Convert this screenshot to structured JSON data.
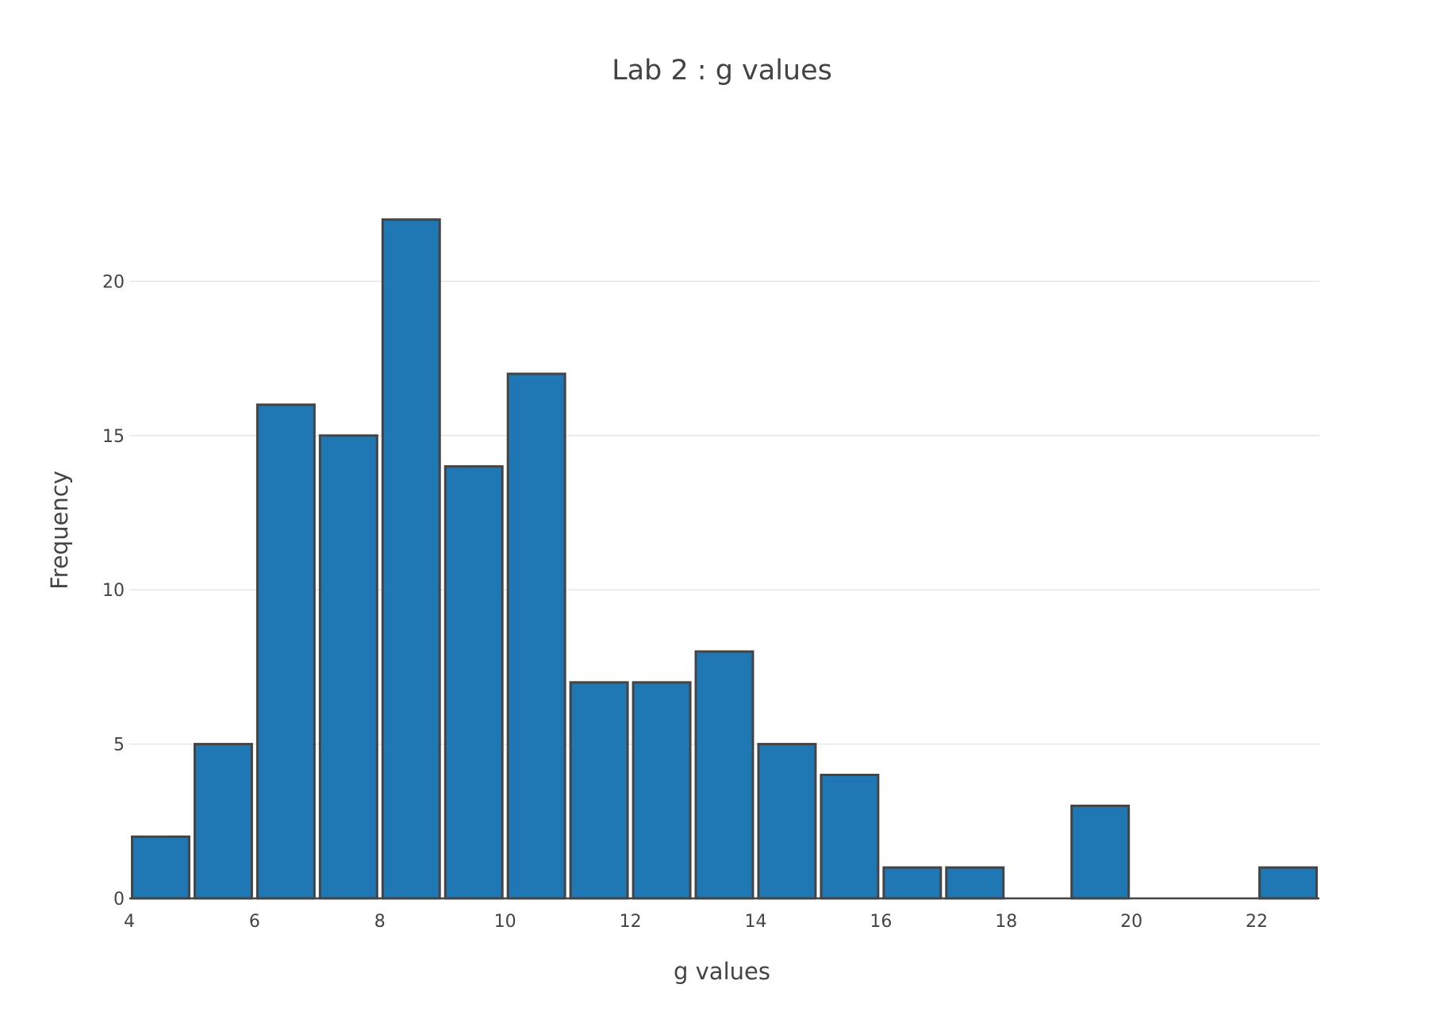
{
  "chart_data": {
    "type": "bar",
    "subtype": "histogram",
    "title": "Lab 2 : g values",
    "xlabel": "g values",
    "ylabel": "Frequency",
    "xlim": [
      4,
      23
    ],
    "ylim": [
      0,
      23.2
    ],
    "x_ticks": [
      4,
      6,
      8,
      10,
      12,
      14,
      16,
      18,
      20,
      22
    ],
    "y_ticks": [
      0,
      5,
      10,
      15,
      20
    ],
    "grid": true,
    "bar_color": "#1f77b4",
    "bar_outline_color": "#444444",
    "bins": [
      {
        "start": 4,
        "end": 5,
        "count": 2
      },
      {
        "start": 5,
        "end": 6,
        "count": 5
      },
      {
        "start": 6,
        "end": 7,
        "count": 16
      },
      {
        "start": 7,
        "end": 8,
        "count": 15
      },
      {
        "start": 8,
        "end": 9,
        "count": 22
      },
      {
        "start": 9,
        "end": 10,
        "count": 14
      },
      {
        "start": 10,
        "end": 11,
        "count": 17
      },
      {
        "start": 11,
        "end": 12,
        "count": 7
      },
      {
        "start": 12,
        "end": 13,
        "count": 7
      },
      {
        "start": 13,
        "end": 14,
        "count": 8
      },
      {
        "start": 14,
        "end": 15,
        "count": 5
      },
      {
        "start": 15,
        "end": 16,
        "count": 4
      },
      {
        "start": 16,
        "end": 17,
        "count": 1
      },
      {
        "start": 17,
        "end": 18,
        "count": 1
      },
      {
        "start": 18,
        "end": 19,
        "count": 0
      },
      {
        "start": 19,
        "end": 20,
        "count": 3
      },
      {
        "start": 20,
        "end": 21,
        "count": 0
      },
      {
        "start": 21,
        "end": 22,
        "count": 0
      },
      {
        "start": 22,
        "end": 23,
        "count": 1
      }
    ]
  }
}
